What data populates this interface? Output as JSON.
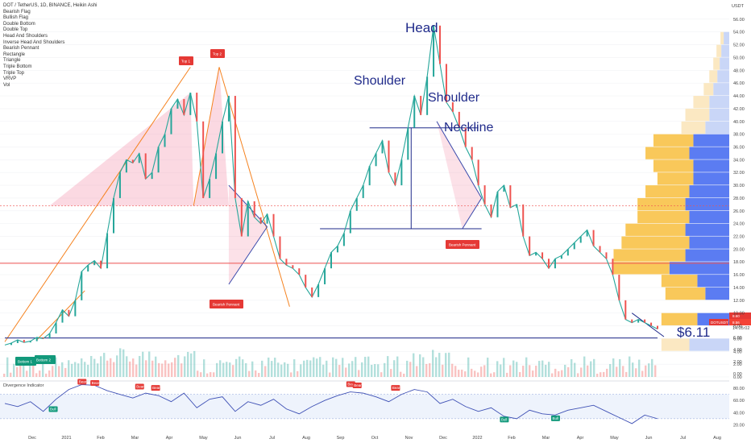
{
  "header": {
    "symbol_line": "DOT / TetherUS, 1D, BINANCE, Heikin Ashi",
    "indicators": [
      "Bearish Flag",
      "Bullish Flag",
      "Double Bottom",
      "Double Top",
      "Head And Shoulders",
      "Inverse Head And Shoulders",
      "Bearish Pennant",
      "Rectangle",
      "Triangle",
      "Triple Bottom",
      "Triple Top",
      "VRVP",
      "Vol"
    ]
  },
  "chart_data": {
    "type": "candlestick",
    "currency": "USDT",
    "ylim": [
      0,
      58
    ],
    "price_ticks": [
      "0.00",
      "2.00",
      "4.00",
      "6.00",
      "8.00",
      "10.00",
      "12.00",
      "14.00",
      "16.00",
      "18.00",
      "20.00",
      "22.00",
      "24.00",
      "26.00",
      "28.00",
      "30.00",
      "32.00",
      "34.00",
      "36.00",
      "38.00",
      "40.00",
      "42.00",
      "44.00",
      "46.00",
      "48.00",
      "50.00",
      "52.00",
      "54.00",
      "56.00"
    ],
    "price_tick_values": [
      0,
      2,
      4,
      6,
      8,
      10,
      12,
      14,
      16,
      18,
      20,
      22,
      24,
      26,
      28,
      30,
      32,
      34,
      36,
      38,
      40,
      42,
      44,
      46,
      48,
      50,
      52,
      54,
      56
    ],
    "time_ticks": [
      "Dec",
      "2021",
      "Feb",
      "Mar",
      "Apr",
      "May",
      "Jun",
      "Jul",
      "Aug",
      "Sep",
      "Oct",
      "Nov",
      "Dec",
      "2022",
      "Feb",
      "Mar",
      "Apr",
      "May",
      "Jun",
      "Jul",
      "Aug"
    ],
    "price_series": [
      [
        0,
        5.0
      ],
      [
        4,
        5.3
      ],
      [
        8,
        5.8
      ],
      [
        12,
        5.4
      ],
      [
        16,
        5.6
      ],
      [
        20,
        6.2
      ],
      [
        24,
        6.0
      ],
      [
        28,
        6.8
      ],
      [
        32,
        8.5
      ],
      [
        36,
        10.5
      ],
      [
        40,
        9.5
      ],
      [
        44,
        12.0
      ],
      [
        48,
        16.5
      ],
      [
        52,
        17.5
      ],
      [
        56,
        18.2
      ],
      [
        60,
        17.0
      ],
      [
        64,
        22.5
      ],
      [
        68,
        28.0
      ],
      [
        72,
        32.0
      ],
      [
        76,
        34.0
      ],
      [
        80,
        33.5
      ],
      [
        84,
        35.0
      ],
      [
        88,
        31.0
      ],
      [
        92,
        32.0
      ],
      [
        96,
        36.0
      ],
      [
        100,
        38.0
      ],
      [
        104,
        42.0
      ],
      [
        108,
        43.5
      ],
      [
        112,
        41.0
      ],
      [
        116,
        44.5
      ],
      [
        120,
        40.0
      ],
      [
        124,
        28.0
      ],
      [
        128,
        31.0
      ],
      [
        132,
        35.0
      ],
      [
        136,
        40.0
      ],
      [
        140,
        44.0
      ],
      [
        144,
        28.0
      ],
      [
        148,
        22.0
      ],
      [
        152,
        27.5
      ],
      [
        156,
        25.0
      ],
      [
        160,
        24.0
      ],
      [
        164,
        25.5
      ],
      [
        168,
        22.0
      ],
      [
        172,
        18.5
      ],
      [
        176,
        17.5
      ],
      [
        180,
        17.0
      ],
      [
        184,
        16.0
      ],
      [
        188,
        14.0
      ],
      [
        192,
        12.5
      ],
      [
        196,
        14.5
      ],
      [
        200,
        17.0
      ],
      [
        204,
        19.5
      ],
      [
        208,
        20.5
      ],
      [
        212,
        22.5
      ],
      [
        216,
        26.0
      ],
      [
        220,
        28.0
      ],
      [
        224,
        30.0
      ],
      [
        228,
        33.0
      ],
      [
        232,
        35.0
      ],
      [
        236,
        37.0
      ],
      [
        240,
        32.0
      ],
      [
        244,
        30.0
      ],
      [
        248,
        34.0
      ],
      [
        252,
        39.0
      ],
      [
        256,
        44.0
      ],
      [
        260,
        41.0
      ],
      [
        264,
        47.0
      ],
      [
        268,
        55.0
      ],
      [
        272,
        49.0
      ],
      [
        276,
        43.0
      ],
      [
        280,
        41.5
      ],
      [
        284,
        39.0
      ],
      [
        288,
        36.0
      ],
      [
        292,
        34.0
      ],
      [
        296,
        30.0
      ],
      [
        300,
        27.0
      ],
      [
        304,
        25.0
      ],
      [
        308,
        29.0
      ],
      [
        312,
        30.0
      ],
      [
        316,
        26.5
      ],
      [
        320,
        27.0
      ],
      [
        324,
        22.0
      ],
      [
        328,
        19.0
      ],
      [
        332,
        19.5
      ],
      [
        336,
        18.5
      ],
      [
        340,
        17.0
      ],
      [
        344,
        18.5
      ],
      [
        348,
        19.0
      ],
      [
        352,
        20.0
      ],
      [
        356,
        21.0
      ],
      [
        360,
        22.0
      ],
      [
        364,
        23.0
      ],
      [
        368,
        20.5
      ],
      [
        372,
        19.5
      ],
      [
        376,
        18.5
      ],
      [
        380,
        16.0
      ],
      [
        384,
        12.0
      ],
      [
        388,
        9.0
      ],
      [
        392,
        8.5
      ],
      [
        396,
        9.0
      ],
      [
        400,
        8.5
      ],
      [
        404,
        8.0
      ],
      [
        408,
        7.5
      ]
    ],
    "current_price": "8.60",
    "last_close": "8.56",
    "current_price_tag": "DOTUSDT",
    "countdown": "14:05:02",
    "target_label": "$6.11",
    "target_price": 6.11,
    "neckline_price": 39.0,
    "support_price": 23.2,
    "red_line_price": 17.8,
    "rectangle_top": 26.8,
    "annotations": {
      "head": "Head",
      "shoulder_left": "Shoulder",
      "shoulder_right": "Shoulder",
      "neckline": "Neckline"
    },
    "tags": {
      "top1": "Top 1",
      "top2": "Top 2",
      "bottom1": "Bottom 1",
      "bottom2": "Bottom 2",
      "bearish_pennant_1": "Bearish Pennant",
      "bearish_pennant_2": "Bearish Pennant"
    },
    "volume_ticks": [
      "0.00",
      "2.00",
      "4.00",
      "6.00"
    ],
    "vrvp_bins": [
      {
        "price": 5.0,
        "buy": 0.35,
        "sell": 0.5
      },
      {
        "price": 9.0,
        "buy": 0.45,
        "sell": 0.4
      },
      {
        "price": 13.0,
        "buy": 0.5,
        "sell": 0.3
      },
      {
        "price": 15.0,
        "buy": 0.45,
        "sell": 0.4
      },
      {
        "price": 17.0,
        "buy": 0.7,
        "sell": 0.75
      },
      {
        "price": 19.0,
        "buy": 0.9,
        "sell": 0.55
      },
      {
        "price": 21.0,
        "buy": 0.85,
        "sell": 0.5
      },
      {
        "price": 23.0,
        "buy": 0.75,
        "sell": 0.55
      },
      {
        "price": 25.0,
        "buy": 0.65,
        "sell": 0.5
      },
      {
        "price": 27.0,
        "buy": 0.6,
        "sell": 0.55
      },
      {
        "price": 29.0,
        "buy": 0.55,
        "sell": 0.5
      },
      {
        "price": 31.0,
        "buy": 0.45,
        "sell": 0.45
      },
      {
        "price": 33.0,
        "buy": 0.5,
        "sell": 0.45
      },
      {
        "price": 35.0,
        "buy": 0.55,
        "sell": 0.5
      },
      {
        "price": 37.0,
        "buy": 0.5,
        "sell": 0.45
      },
      {
        "price": 39.0,
        "buy": 0.3,
        "sell": 0.3
      },
      {
        "price": 41.0,
        "buy": 0.3,
        "sell": 0.25
      },
      {
        "price": 43.0,
        "buy": 0.2,
        "sell": 0.25
      },
      {
        "price": 45.0,
        "buy": 0.12,
        "sell": 0.2
      },
      {
        "price": 47.0,
        "buy": 0.1,
        "sell": 0.15
      },
      {
        "price": 49.0,
        "buy": 0.08,
        "sell": 0.12
      },
      {
        "price": 51.0,
        "buy": 0.06,
        "sell": 0.1
      },
      {
        "price": 53.0,
        "buy": 0.04,
        "sell": 0.07
      }
    ],
    "divergence": {
      "title": "Divergence Indicator",
      "ylim": [
        10,
        92
      ],
      "ticks": [
        "80.00",
        "60.00",
        "40.00",
        "20.00"
      ],
      "tick_values": [
        80,
        60,
        40,
        20
      ],
      "band": [
        30,
        70
      ],
      "series": [
        [
          0,
          55
        ],
        [
          8,
          50
        ],
        [
          16,
          58
        ],
        [
          24,
          42
        ],
        [
          32,
          62
        ],
        [
          40,
          78
        ],
        [
          48,
          86
        ],
        [
          56,
          85
        ],
        [
          64,
          76
        ],
        [
          72,
          70
        ],
        [
          80,
          64
        ],
        [
          88,
          72
        ],
        [
          96,
          68
        ],
        [
          104,
          58
        ],
        [
          112,
          72
        ],
        [
          120,
          48
        ],
        [
          128,
          62
        ],
        [
          136,
          66
        ],
        [
          144,
          42
        ],
        [
          152,
          58
        ],
        [
          160,
          52
        ],
        [
          168,
          62
        ],
        [
          176,
          46
        ],
        [
          184,
          38
        ],
        [
          192,
          50
        ],
        [
          200,
          60
        ],
        [
          208,
          68
        ],
        [
          216,
          74
        ],
        [
          224,
          72
        ],
        [
          232,
          66
        ],
        [
          240,
          58
        ],
        [
          248,
          70
        ],
        [
          256,
          78
        ],
        [
          264,
          74
        ],
        [
          272,
          55
        ],
        [
          280,
          62
        ],
        [
          288,
          50
        ],
        [
          296,
          42
        ],
        [
          304,
          48
        ],
        [
          312,
          34
        ],
        [
          320,
          30
        ],
        [
          328,
          44
        ],
        [
          336,
          38
        ],
        [
          344,
          36
        ],
        [
          352,
          44
        ],
        [
          360,
          48
        ],
        [
          368,
          52
        ],
        [
          376,
          42
        ],
        [
          384,
          32
        ],
        [
          392,
          22
        ],
        [
          400,
          36
        ],
        [
          408,
          30
        ]
      ],
      "labels": [
        "Bull",
        "Bear",
        "Bear",
        "Bear",
        "Bear",
        "Bear",
        "Bear",
        "Bear",
        "Bull",
        "Bull"
      ]
    }
  }
}
